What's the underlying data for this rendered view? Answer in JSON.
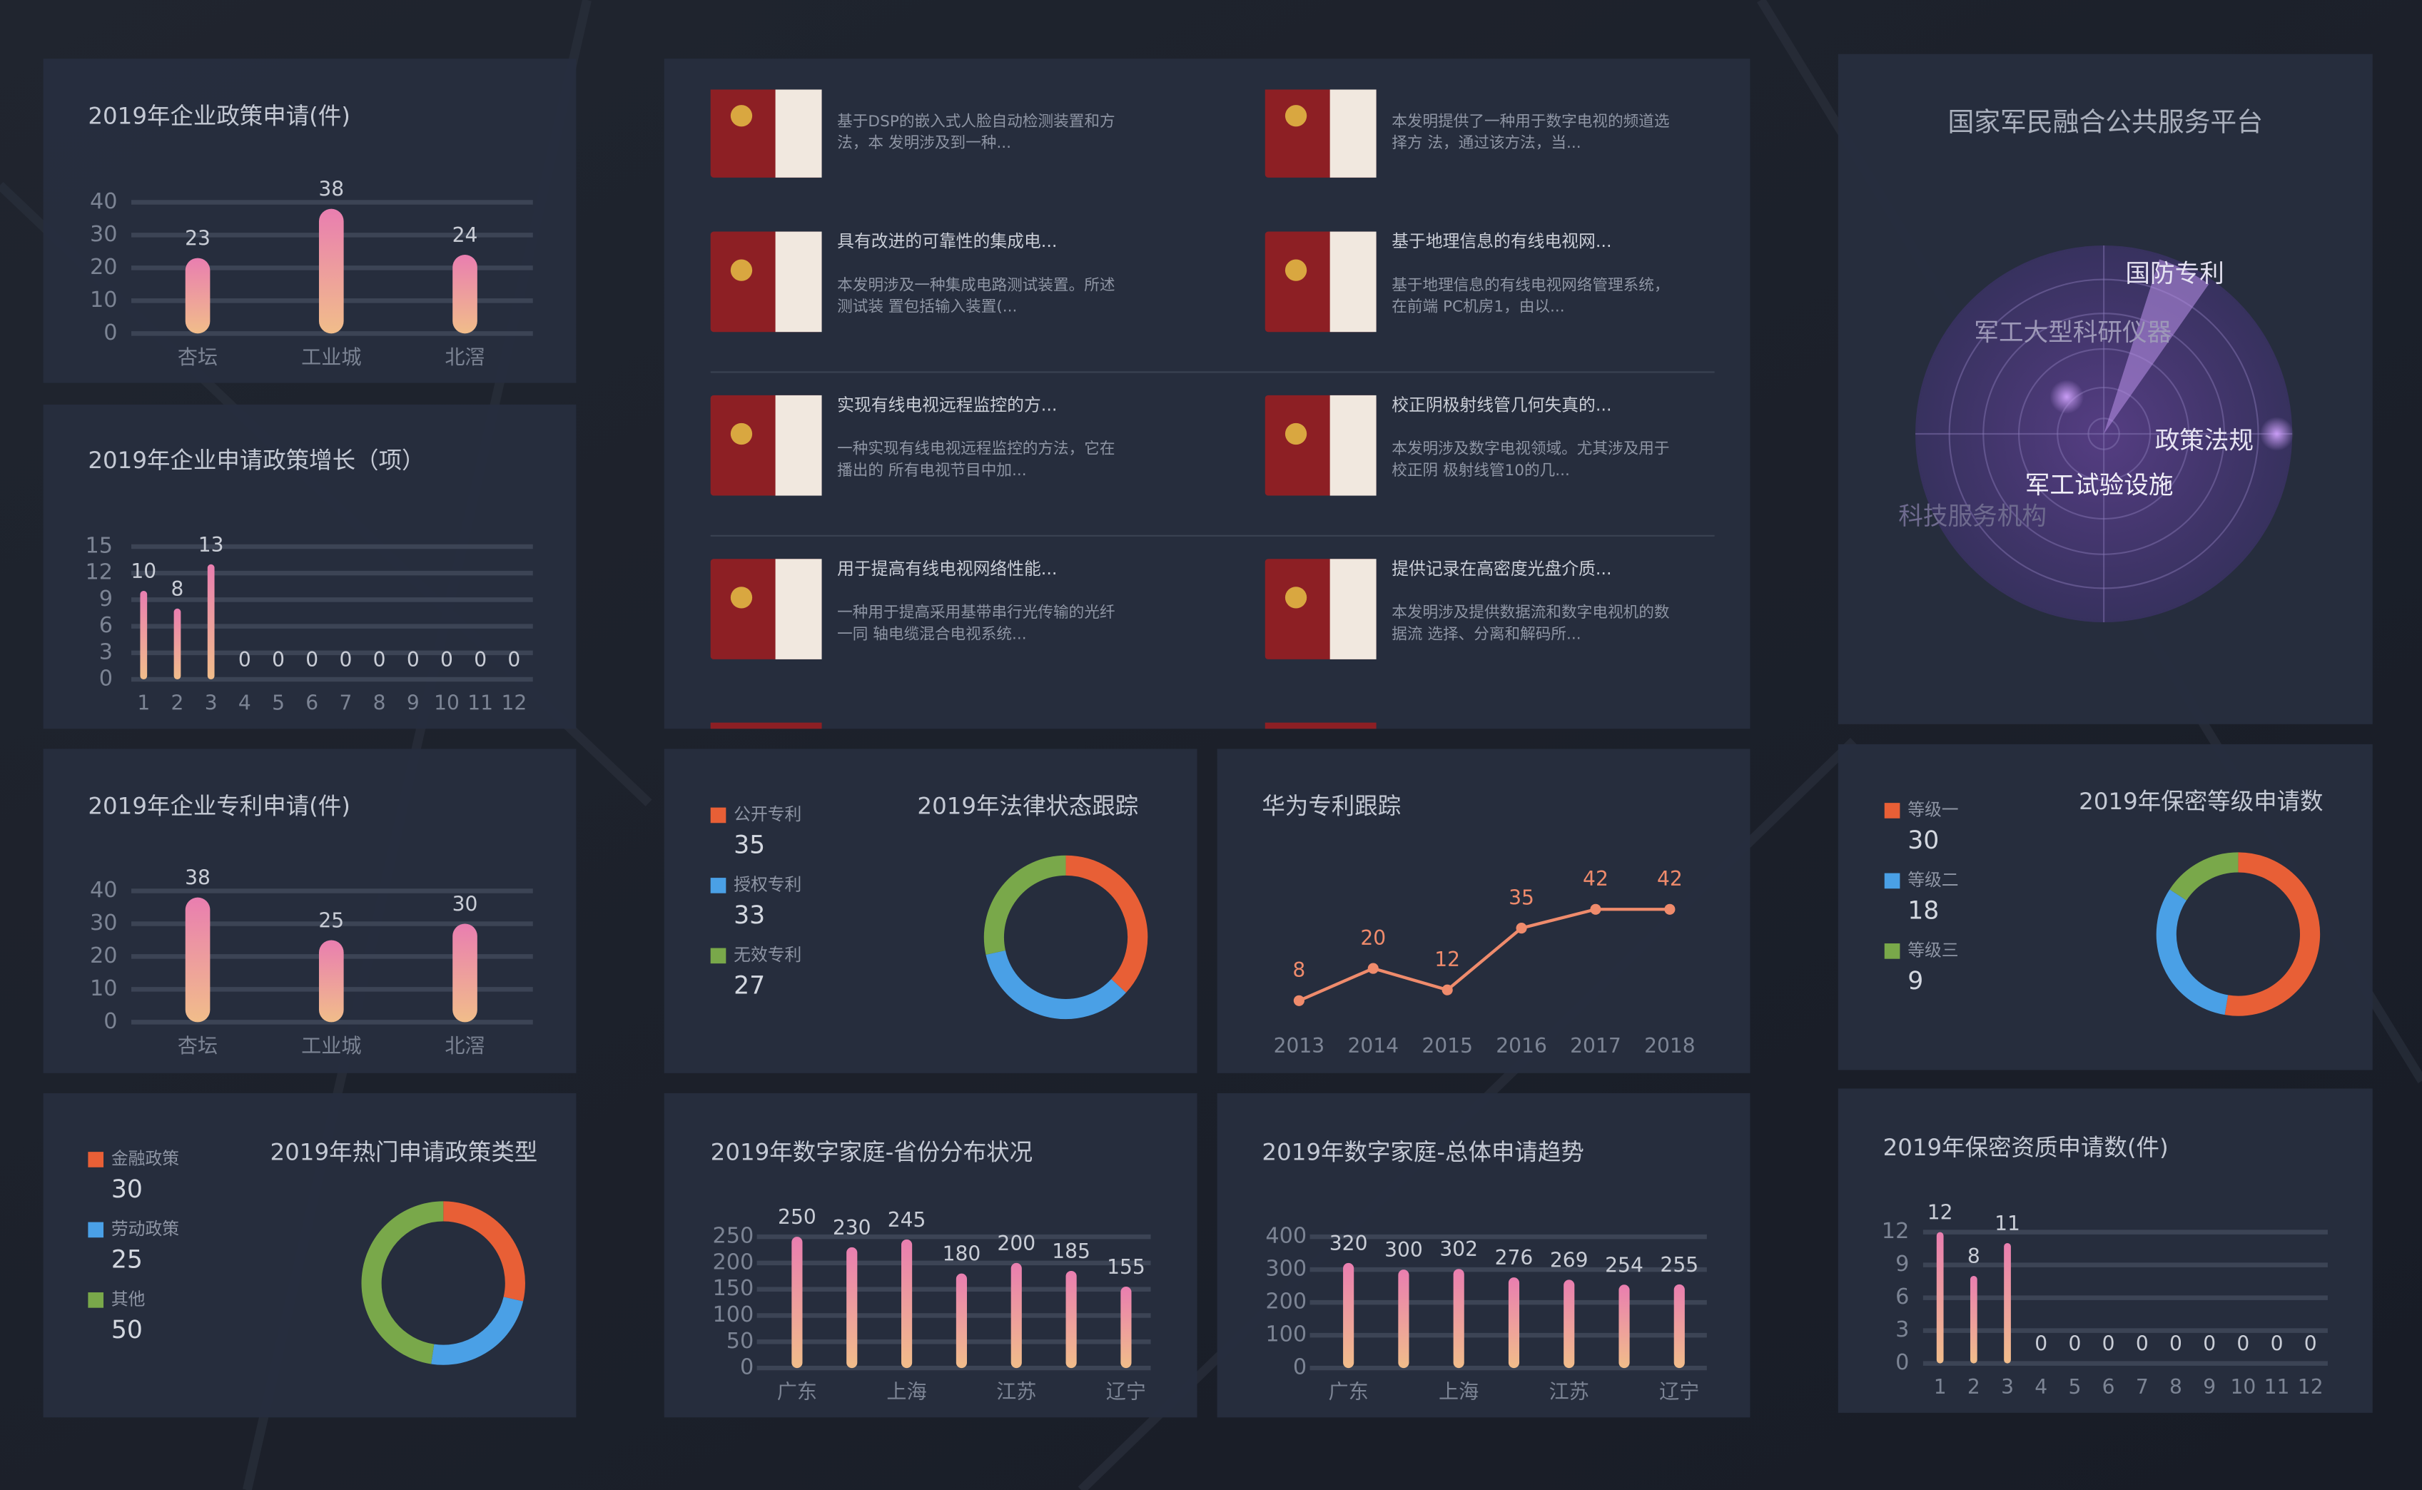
{
  "chart_data": [
    {
      "type": "bar",
      "title": "2019年企业政策申请(件)",
      "categories": [
        "杏坛",
        "工业城",
        "北滘"
      ],
      "values": [
        23,
        38,
        24
      ],
      "ylim": [
        0,
        40
      ],
      "yticks": [
        0,
        10,
        20,
        30,
        40
      ],
      "gradient": [
        "#e97eb0",
        "#f1bd8a"
      ],
      "grid": true
    },
    {
      "type": "bar",
      "title": "2019年企业申请政策增长（项）",
      "categories": [
        1,
        2,
        3,
        4,
        5,
        6,
        7,
        8,
        9,
        10,
        11,
        12
      ],
      "values": [
        10,
        8,
        13,
        0,
        0,
        0,
        0,
        0,
        0,
        0,
        0,
        0
      ],
      "ylim": [
        0,
        15
      ],
      "yticks": [
        0,
        3,
        6,
        9,
        12,
        15
      ],
      "gradient": [
        "#e97eb0",
        "#f1bd8a"
      ],
      "grid": true
    },
    {
      "type": "bar",
      "title": "2019年企业专利申请(件)",
      "categories": [
        "杏坛",
        "工业城",
        "北滘"
      ],
      "values": [
        38,
        25,
        30
      ],
      "ylim": [
        0,
        40
      ],
      "yticks": [
        0,
        10,
        20,
        30,
        40
      ],
      "gradient": [
        "#e97eb0",
        "#f1bd8a"
      ],
      "grid": true
    },
    {
      "type": "donut",
      "title": "2019年法律状态跟踪",
      "series": [
        {
          "name": "公开专利",
          "color": "#e85f36",
          "value": 35
        },
        {
          "name": "授权专利",
          "color": "#4aa0e6",
          "value": 33
        },
        {
          "name": "无效专利",
          "color": "#79a84a",
          "value": 27
        }
      ]
    },
    {
      "type": "line",
      "title": "华为专利跟踪",
      "x": [
        2013,
        2014,
        2015,
        2016,
        2017,
        2018
      ],
      "values": [
        8,
        20,
        12,
        35,
        42,
        42
      ],
      "xlim": [
        2013,
        2018
      ],
      "xticks": [
        2013,
        2014,
        2015,
        2016,
        2017,
        2018
      ],
      "ylim": [
        0,
        50
      ],
      "color": "#ef8b6c"
    },
    {
      "type": "donut",
      "title": "2019年保密等级申请数",
      "series": [
        {
          "name": "等级一",
          "color": "#e85f36",
          "value": 30
        },
        {
          "name": "等级二",
          "color": "#4aa0e6",
          "value": 18
        },
        {
          "name": "等级三",
          "color": "#79a84a",
          "value": 9
        }
      ]
    },
    {
      "type": "donut",
      "title": "2019年热门申请政策类型",
      "series": [
        {
          "name": "金融政策",
          "color": "#e85f36",
          "value": 30
        },
        {
          "name": "劳动政策",
          "color": "#4aa0e6",
          "value": 25
        },
        {
          "name": "其他",
          "color": "#79a84a",
          "value": 50
        }
      ]
    },
    {
      "type": "bar",
      "title": "2019年数字家庭-省份分布状况",
      "categories": [
        "广东",
        null,
        "上海",
        null,
        "江苏",
        null,
        "辽宁"
      ],
      "values": [
        250,
        230,
        245,
        180,
        200,
        185,
        155
      ],
      "ylim": [
        0,
        250
      ],
      "yticks": [
        0,
        50,
        100,
        150,
        200,
        250
      ],
      "gradient": [
        "#e97eb0",
        "#f1bd8a"
      ],
      "grid": true
    },
    {
      "type": "bar",
      "title": "2019年数字家庭-总体申请趋势",
      "categories": [
        "广东",
        null,
        "上海",
        null,
        "江苏",
        null,
        "辽宁"
      ],
      "values": [
        320,
        300,
        302,
        276,
        269,
        254,
        255
      ],
      "ylim": [
        0,
        400
      ],
      "yticks": [
        0,
        100,
        200,
        300,
        400
      ],
      "gradient": [
        "#e97eb0",
        "#f1bd8a"
      ],
      "grid": true
    },
    {
      "type": "bar",
      "title": "2019年保密资质申请数(件)",
      "categories": [
        1,
        2,
        3,
        4,
        5,
        6,
        7,
        8,
        9,
        10,
        11,
        12
      ],
      "values": [
        12,
        8,
        11,
        0,
        0,
        0,
        0,
        0,
        0,
        0,
        0,
        0
      ],
      "ylim": [
        0,
        12
      ],
      "yticks": [
        0,
        3,
        6,
        9,
        12
      ],
      "gradient": [
        "#e97eb0",
        "#f1bd8a"
      ],
      "grid": true
    }
  ],
  "patents": {
    "items": [
      {
        "desc": [
          "基于DSP的嵌入式人脸自动检测装置和方",
          "法，本 发明涉及到一种..."
        ]
      },
      {
        "desc": [
          "本发明提供了一种用于数字电视的频道选",
          "择方 法，通过该方法，当..."
        ]
      },
      {
        "title": "具有改进的可靠性的集成电...",
        "desc": [
          "本发明涉及一种集成电路测试装置。所述",
          "测试装 置包括输入装置(..."
        ]
      },
      {
        "title": "基于地理信息的有线电视网...",
        "desc": [
          "基于地理信息的有线电视网络管理系统，",
          "在前端 PC机房1，由以..."
        ]
      },
      {
        "title": "实现有线电视远程监控的方...",
        "desc": [
          "一种实现有线电视远程监控的方法，它在",
          "播出的 所有电视节目中加..."
        ]
      },
      {
        "title": "校正阴极射线管几何失真的...",
        "desc": [
          "本发明涉及数字电视领域。尤其涉及用于",
          "校正阴 极射线管10的几..."
        ]
      },
      {
        "title": "用于提高有线电视网络性能...",
        "desc": [
          "一种用于提高采用基带串行光传输的光纤",
          "一同 轴电缆混合电视系统..."
        ]
      },
      {
        "title": "提供记录在高密度光盘介质...",
        "desc": [
          "本发明涉及提供数据流和数字电视机的数",
          "据流 选择、分离和解码所..."
        ]
      }
    ]
  },
  "radar": {
    "title": "国家军民融合公共服务平台",
    "labels": [
      "国防专利",
      "军工大型科研仪器",
      "政策法规",
      "军工试验设施",
      "科技服务机构"
    ]
  }
}
